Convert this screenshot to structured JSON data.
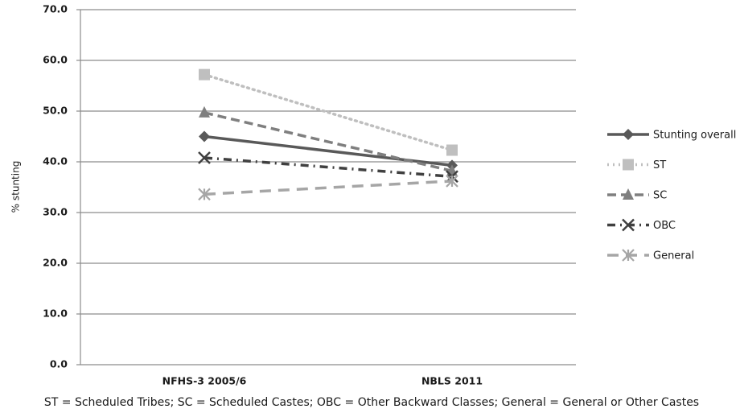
{
  "chart_data": {
    "type": "line",
    "y_label": "% stunting",
    "note": "ST = Scheduled Tribes; SC = Scheduled Castes; OBC = Other Backward Classes; General = General or Other Castes",
    "categories": [
      "NFHS-3 2005/6",
      "NBLS 2011"
    ],
    "series": [
      {
        "name": "Stunting overall",
        "color": "#595959",
        "dash": "solid",
        "marker": "diamond",
        "values": [
          45.0,
          39.3
        ]
      },
      {
        "name": "ST",
        "color": "#bfbfbf",
        "dash": "dotted",
        "marker": "square",
        "values": [
          57.2,
          42.3
        ]
      },
      {
        "name": "SC",
        "color": "#7f7f7f",
        "dash": "dashed",
        "marker": "triangle",
        "values": [
          49.7,
          38.2
        ]
      },
      {
        "name": "OBC",
        "color": "#404040",
        "dash": "dashdot",
        "marker": "x",
        "values": [
          40.8,
          37.1
        ]
      },
      {
        "name": "General",
        "color": "#a6a6a6",
        "dash": "longdash",
        "marker": "asterisk",
        "values": [
          33.6,
          36.2
        ]
      }
    ],
    "ylim": [
      0,
      70
    ],
    "yticks": [
      {
        "value": 0,
        "label": "0.0"
      },
      {
        "value": 10,
        "label": "10.0"
      },
      {
        "value": 20,
        "label": "20.0"
      },
      {
        "value": 30,
        "label": "30.0"
      },
      {
        "value": 40,
        "label": "40.0"
      },
      {
        "value": 50,
        "label": "50.0"
      },
      {
        "value": 60,
        "label": "60.0"
      },
      {
        "value": 70,
        "label": "70.0"
      }
    ],
    "grid": true,
    "legend": "right"
  }
}
